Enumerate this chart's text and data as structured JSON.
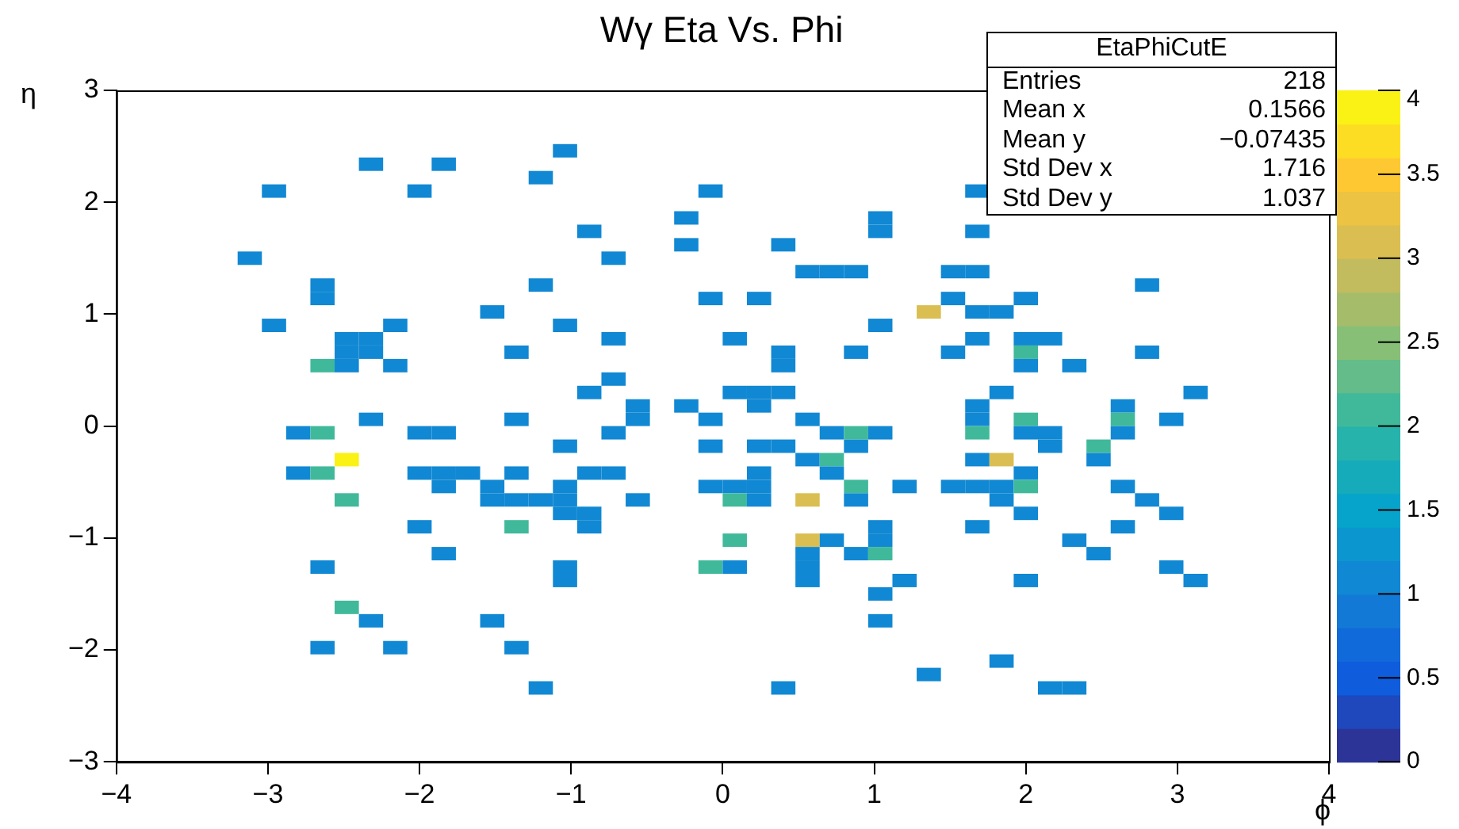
{
  "chart_data": {
    "type": "scatter",
    "title": "Wγ Eta Vs. Phi",
    "xlabel": "ϕ",
    "ylabel": "η",
    "annotations": [
      "EtaPhiCutE",
      "Entries",
      "218",
      "Mean x",
      "0.1566",
      "Mean y",
      "−0.07435",
      "Std Dev x",
      "1.716",
      "Std Dev y",
      "1.037"
    ],
    "x": [
      -1.04,
      -2.32,
      -1.84,
      -1.2,
      -2.96,
      -2.0,
      -0.08,
      1.68,
      -0.24,
      1.04,
      -0.88,
      1.04,
      1.68,
      -0.24,
      0.4,
      -3.12,
      -0.72,
      0.56,
      0.72,
      0.88,
      1.52,
      1.68,
      -2.64,
      -1.2,
      2.8,
      -2.64,
      -0.08,
      0.24,
      1.52,
      2.0,
      -1.52,
      1.36,
      1.68,
      1.84,
      -2.96,
      -2.16,
      -1.04,
      1.04,
      -2.48,
      -2.32,
      -0.72,
      0.08,
      1.68,
      2.0,
      2.16,
      -2.48,
      -2.32,
      -1.36,
      0.4,
      0.88,
      1.52,
      2.0,
      2.8,
      -2.64,
      -2.48,
      -2.16,
      0.4,
      2.0,
      2.32,
      -0.72,
      -0.88,
      0.08,
      0.24,
      0.4,
      1.84,
      3.12,
      -0.56,
      -0.24,
      0.24,
      1.68,
      2.64,
      -2.32,
      -1.36,
      -0.56,
      -0.08,
      0.56,
      1.68,
      2.0,
      2.64,
      2.96,
      -2.8,
      -2.64,
      -2.0,
      -1.84,
      -0.72,
      0.72,
      0.88,
      1.04,
      1.68,
      2.0,
      2.16,
      2.64,
      -1.04,
      -0.08,
      0.24,
      0.4,
      0.88,
      2.16,
      2.48,
      -2.48,
      0.56,
      0.72,
      1.68,
      1.84,
      2.48,
      -2.8,
      -2.64,
      -2.0,
      -1.84,
      -1.68,
      -1.36,
      -0.88,
      -0.72,
      0.24,
      0.72,
      2.0,
      -1.84,
      -1.52,
      -1.04,
      -0.08,
      0.08,
      0.24,
      0.88,
      1.2,
      1.52,
      1.68,
      1.84,
      2.0,
      2.64,
      -2.48,
      -1.52,
      -1.36,
      -1.2,
      -1.04,
      -0.56,
      0.08,
      0.24,
      0.56,
      0.88,
      1.84,
      2.8,
      -1.04,
      -0.88,
      2.0,
      2.96,
      -2.0,
      -1.36,
      -0.88,
      1.04,
      1.68,
      2.64,
      0.08,
      0.56,
      0.72,
      1.04,
      2.32,
      -1.84,
      0.56,
      0.88,
      1.04,
      2.48,
      -2.64,
      -1.04,
      -0.08,
      0.08,
      0.56,
      2.96,
      -1.04,
      0.56,
      1.2,
      2.0,
      3.12,
      1.04,
      -2.48,
      -2.32,
      -1.52,
      1.04,
      -2.64,
      -2.16,
      -1.36,
      1.84,
      1.36,
      -1.2,
      0.4,
      2.16,
      2.32
    ],
    "values": [
      2.46,
      2.34,
      2.34,
      2.22,
      2.1,
      2.1,
      2.1,
      2.1,
      1.86,
      1.86,
      1.74,
      1.74,
      1.74,
      1.62,
      1.62,
      1.5,
      1.5,
      1.38,
      1.38,
      1.38,
      1.38,
      1.38,
      1.26,
      1.26,
      1.26,
      1.14,
      1.14,
      1.14,
      1.14,
      1.14,
      1.02,
      1.02,
      1.02,
      1.02,
      0.9,
      0.9,
      0.9,
      0.9,
      0.78,
      0.78,
      0.78,
      0.78,
      0.78,
      0.78,
      0.78,
      0.66,
      0.66,
      0.66,
      0.66,
      0.66,
      0.66,
      0.66,
      0.66,
      0.54,
      0.54,
      0.54,
      0.54,
      0.54,
      0.54,
      0.42,
      0.3,
      0.3,
      0.3,
      0.3,
      0.3,
      0.3,
      0.18,
      0.18,
      0.18,
      0.18,
      0.18,
      0.06,
      0.06,
      0.06,
      0.06,
      0.06,
      0.06,
      0.06,
      0.06,
      0.06,
      -0.06,
      -0.06,
      -0.06,
      -0.06,
      -0.06,
      -0.06,
      -0.06,
      -0.06,
      -0.06,
      -0.06,
      -0.06,
      -0.06,
      -0.18,
      -0.18,
      -0.18,
      -0.18,
      -0.18,
      -0.18,
      -0.18,
      -0.3,
      -0.3,
      -0.3,
      -0.3,
      -0.3,
      -0.3,
      -0.42,
      -0.42,
      -0.42,
      -0.42,
      -0.42,
      -0.42,
      -0.42,
      -0.42,
      -0.42,
      -0.42,
      -0.42,
      -0.54,
      -0.54,
      -0.54,
      -0.54,
      -0.54,
      -0.54,
      -0.54,
      -0.54,
      -0.54,
      -0.54,
      -0.54,
      -0.54,
      -0.54,
      -0.66,
      -0.66,
      -0.66,
      -0.66,
      -0.66,
      -0.66,
      -0.66,
      -0.66,
      -0.66,
      -0.66,
      -0.66,
      -0.66,
      -0.78,
      -0.78,
      -0.78,
      -0.78,
      -0.9,
      -0.9,
      -0.9,
      -0.9,
      -0.9,
      -0.9,
      -1.02,
      -1.02,
      -1.02,
      -1.02,
      -1.02,
      -1.14,
      -1.14,
      -1.14,
      -1.14,
      -1.14,
      -1.26,
      -1.26,
      -1.26,
      -1.26,
      -1.26,
      -1.26,
      -1.38,
      -1.38,
      -1.38,
      -1.38,
      -1.38,
      -1.5,
      -1.62,
      -1.74,
      -1.74,
      -1.74,
      -1.98,
      -1.98,
      -1.98,
      -2.1,
      -2.22,
      -2.34,
      -2.34,
      -2.34,
      -2.34
    ],
    "cvalues": [
      1,
      1,
      1,
      1,
      1,
      1,
      1,
      1,
      1,
      1,
      1,
      1,
      1,
      1,
      1,
      1,
      1,
      1,
      1,
      1,
      1,
      1,
      1,
      1,
      1,
      1,
      1,
      1,
      1,
      1,
      1,
      3,
      1,
      1,
      1,
      1,
      1,
      1,
      1,
      1,
      1,
      1,
      1,
      1,
      1,
      1,
      1,
      1,
      1,
      1,
      1,
      2,
      1,
      2,
      1,
      1,
      1,
      1,
      1,
      1,
      1,
      1,
      1,
      1,
      1,
      1,
      1,
      1,
      1,
      1,
      1,
      1,
      1,
      1,
      1,
      1,
      1,
      2,
      2,
      1,
      1,
      2,
      1,
      1,
      1,
      1,
      2,
      1,
      2,
      1,
      1,
      1,
      1,
      1,
      1,
      1,
      1,
      1,
      2,
      4,
      1,
      2,
      1,
      3,
      1,
      1,
      2,
      1,
      1,
      1,
      1,
      1,
      1,
      1,
      1,
      1,
      1,
      1,
      1,
      1,
      1,
      1,
      2,
      1,
      1,
      1,
      1,
      2,
      1,
      2,
      1,
      1,
      1,
      1,
      1,
      2,
      1,
      3,
      1,
      1,
      1,
      1,
      1,
      1,
      1,
      1,
      2,
      1,
      1,
      1,
      1,
      2,
      3,
      1,
      1,
      1,
      1,
      1,
      1,
      2,
      1,
      1,
      1,
      2,
      1,
      1,
      1,
      1,
      1,
      1,
      1,
      1,
      1,
      2,
      1,
      1,
      1,
      1,
      1,
      1,
      1,
      1,
      1,
      1,
      1,
      1
    ],
    "xlim": [
      -4,
      4
    ],
    "xticks": [
      {
        "value": -4,
        "label": "−4"
      },
      {
        "value": -3,
        "label": "−3"
      },
      {
        "value": -2,
        "label": "−2"
      },
      {
        "value": -1,
        "label": "−1"
      },
      0,
      1,
      2,
      3,
      4
    ],
    "ylim": [
      -3,
      3
    ],
    "yticks": [
      {
        "value": -3,
        "label": "−3"
      },
      {
        "value": -2,
        "label": "−2"
      },
      {
        "value": -1,
        "label": "−1"
      },
      0,
      1,
      2,
      3
    ],
    "clim": [
      0,
      4
    ],
    "cticks": [
      0,
      0.5,
      1,
      1.5,
      2,
      2.5,
      3,
      3.5,
      4
    ],
    "grid": false,
    "legend": false
  }
}
